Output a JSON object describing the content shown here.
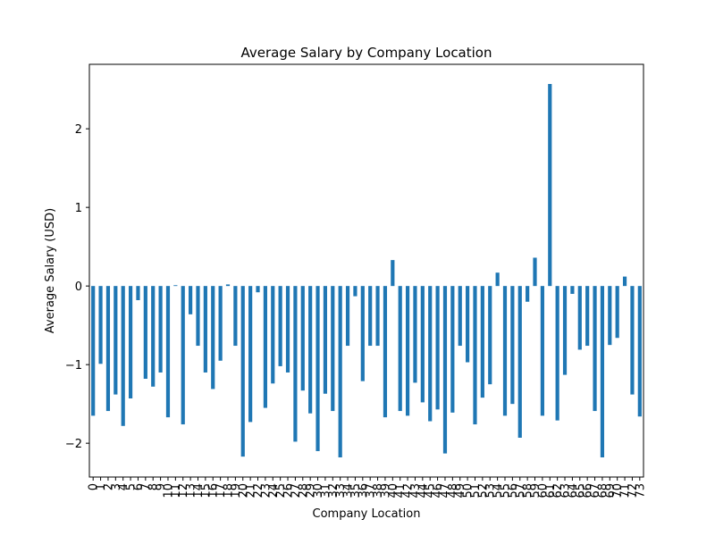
{
  "chart_data": {
    "type": "bar",
    "title": "Average Salary by Company Location",
    "xlabel": "Company Location",
    "ylabel": "Average Salary (USD)",
    "categories": [
      "0",
      "1",
      "2",
      "3",
      "4",
      "5",
      "6",
      "7",
      "8",
      "9",
      "10",
      "11",
      "12",
      "13",
      "14",
      "15",
      "16",
      "17",
      "18",
      "19",
      "20",
      "21",
      "22",
      "23",
      "24",
      "25",
      "26",
      "27",
      "28",
      "29",
      "30",
      "31",
      "32",
      "33",
      "34",
      "35",
      "36",
      "37",
      "38",
      "39",
      "40",
      "41",
      "42",
      "43",
      "44",
      "45",
      "46",
      "47",
      "48",
      "49",
      "50",
      "51",
      "52",
      "53",
      "54",
      "55",
      "56",
      "57",
      "58",
      "59",
      "60",
      "61",
      "62",
      "63",
      "64",
      "65",
      "66",
      "67",
      "68",
      "69",
      "70",
      "71",
      "72",
      "73"
    ],
    "values": [
      -1.65,
      -0.99,
      -1.59,
      -1.38,
      -1.78,
      -1.43,
      -0.18,
      -1.18,
      -1.28,
      -1.1,
      -1.67,
      0.01,
      -1.76,
      -0.36,
      -0.76,
      -1.1,
      -1.31,
      -0.95,
      0.02,
      -0.76,
      -2.17,
      -1.73,
      -0.08,
      -1.55,
      -1.24,
      -1.02,
      -1.1,
      -1.98,
      -1.33,
      -1.62,
      -2.1,
      -1.37,
      -1.59,
      -2.18,
      -0.76,
      -0.13,
      -1.21,
      -0.76,
      -0.76,
      -1.67,
      0.33,
      -1.59,
      -1.65,
      -1.23,
      -1.48,
      -1.72,
      -1.57,
      -2.13,
      -1.61,
      -0.76,
      -0.97,
      -1.76,
      -1.42,
      -1.25,
      0.17,
      -1.65,
      -1.5,
      -1.93,
      -0.2,
      0.36,
      -1.65,
      2.57,
      -1.71,
      -1.13,
      -0.1,
      -0.81,
      -0.76,
      -1.59,
      -2.18,
      -0.75,
      -0.66,
      0.12,
      -1.38,
      -1.66
    ],
    "yticks": [
      -2,
      -1,
      0,
      1,
      2
    ],
    "ytick_labels": [
      "−2",
      "−1",
      "0",
      "1",
      "2"
    ],
    "ylim": [
      -2.43,
      2.82
    ],
    "bar_color": "#1f77b4",
    "grid": false,
    "legend": "none"
  }
}
